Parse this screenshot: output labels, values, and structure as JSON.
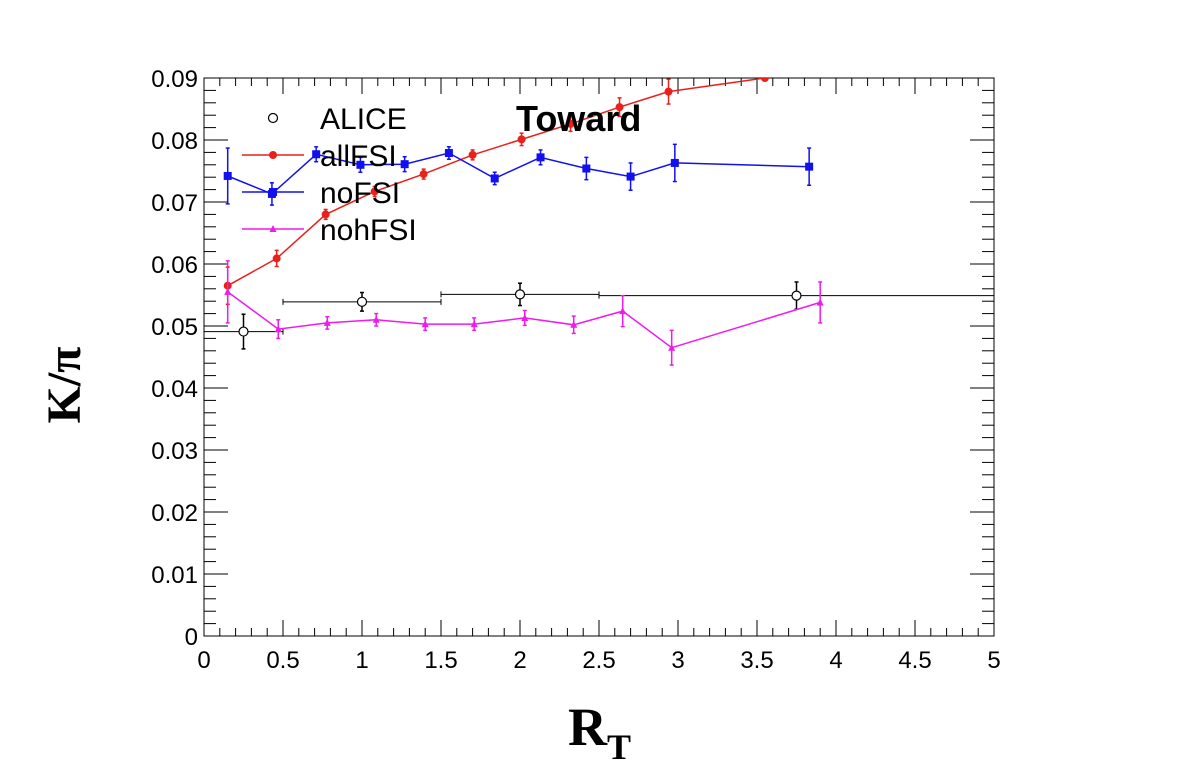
{
  "chart_data": {
    "type": "scatter",
    "title": "",
    "annotation": "Toward",
    "xlabel_main": "R",
    "xlabel_sub": "T",
    "ylabel": "K/π",
    "xlim": [
      0,
      5
    ],
    "ylim": [
      0,
      0.09
    ],
    "x_ticks": [
      "0",
      "0.5",
      "1",
      "1.5",
      "2",
      "2.5",
      "3",
      "3.5",
      "4",
      "4.5",
      "5"
    ],
    "y_ticks": [
      "0",
      "0.01",
      "0.02",
      "0.03",
      "0.04",
      "0.05",
      "0.06",
      "0.07",
      "0.08",
      "0.09"
    ],
    "legend_position": "top-left",
    "series": [
      {
        "name": "ALICE",
        "color": "#000000",
        "marker": "open-circle",
        "line": false,
        "points": [
          {
            "x": 0.25,
            "y": 0.0491,
            "xerr": [
              0.25,
              0.25
            ],
            "yerr": 0.0028
          },
          {
            "x": 1.0,
            "y": 0.0539,
            "xerr": [
              0.5,
              0.5
            ],
            "yerr": 0.0015
          },
          {
            "x": 2.0,
            "y": 0.0551,
            "xerr": [
              0.5,
              0.5
            ],
            "yerr": 0.0018
          },
          {
            "x": 3.75,
            "y": 0.0549,
            "xerr": [
              1.25,
              1.25
            ],
            "yerr": 0.0022
          }
        ]
      },
      {
        "name": "allFSI",
        "color": "#e8211a",
        "marker": "filled-circle",
        "line": true,
        "points": [
          {
            "x": 0.15,
            "y": 0.0565,
            "yerr": 0.003
          },
          {
            "x": 0.46,
            "y": 0.0609,
            "yerr": 0.0013
          },
          {
            "x": 0.77,
            "y": 0.068,
            "yerr": 0.0008
          },
          {
            "x": 1.08,
            "y": 0.0717,
            "yerr": 0.0008
          },
          {
            "x": 1.39,
            "y": 0.0745,
            "yerr": 0.0008
          },
          {
            "x": 1.7,
            "y": 0.0776,
            "yerr": 0.0008
          },
          {
            "x": 2.01,
            "y": 0.0801,
            "yerr": 0.001
          },
          {
            "x": 2.32,
            "y": 0.0826,
            "yerr": 0.0012
          },
          {
            "x": 2.63,
            "y": 0.0853,
            "yerr": 0.0015
          },
          {
            "x": 2.94,
            "y": 0.0878,
            "yerr": 0.002
          },
          {
            "x": 3.55,
            "y": 0.09,
            "yerr": 0
          }
        ]
      },
      {
        "name": "noFSI",
        "color": "#1111ee",
        "marker": "filled-square",
        "line": true,
        "points": [
          {
            "x": 0.15,
            "y": 0.0742,
            "yerr": 0.0045
          },
          {
            "x": 0.43,
            "y": 0.0713,
            "yerr": 0.0018
          },
          {
            "x": 0.71,
            "y": 0.0777,
            "yerr": 0.0012
          },
          {
            "x": 0.99,
            "y": 0.076,
            "yerr": 0.0012
          },
          {
            "x": 1.27,
            "y": 0.0761,
            "yerr": 0.0012
          },
          {
            "x": 1.55,
            "y": 0.0779,
            "yerr": 0.001
          },
          {
            "x": 1.84,
            "y": 0.0738,
            "yerr": 0.001
          },
          {
            "x": 2.13,
            "y": 0.0772,
            "yerr": 0.0012
          },
          {
            "x": 2.42,
            "y": 0.0754,
            "yerr": 0.0018
          },
          {
            "x": 2.7,
            "y": 0.0741,
            "yerr": 0.0022
          },
          {
            "x": 2.98,
            "y": 0.0763,
            "yerr": 0.003
          },
          {
            "x": 3.83,
            "y": 0.0757,
            "yerr": 0.003
          }
        ]
      },
      {
        "name": "nohFSI",
        "color": "#ee1aee",
        "marker": "filled-triangle",
        "line": true,
        "points": [
          {
            "x": 0.15,
            "y": 0.0555,
            "yerr": 0.005
          },
          {
            "x": 0.47,
            "y": 0.0495,
            "yerr": 0.0015
          },
          {
            "x": 0.78,
            "y": 0.0505,
            "yerr": 0.001
          },
          {
            "x": 1.09,
            "y": 0.051,
            "yerr": 0.001
          },
          {
            "x": 1.4,
            "y": 0.0503,
            "yerr": 0.001
          },
          {
            "x": 1.71,
            "y": 0.0503,
            "yerr": 0.001
          },
          {
            "x": 2.03,
            "y": 0.0513,
            "yerr": 0.0012
          },
          {
            "x": 2.34,
            "y": 0.0502,
            "yerr": 0.0014
          },
          {
            "x": 2.65,
            "y": 0.0524,
            "yerr": 0.0025
          },
          {
            "x": 2.96,
            "y": 0.0465,
            "yerr": 0.0028
          },
          {
            "x": 3.9,
            "y": 0.0538,
            "yerr": 0.0033
          }
        ]
      }
    ]
  }
}
